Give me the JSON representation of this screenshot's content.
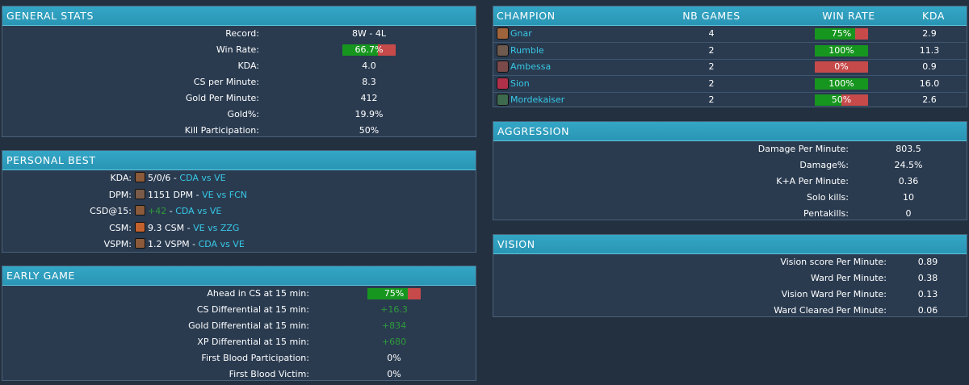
{
  "general_stats": {
    "title": "GENERAL STATS",
    "rows": [
      {
        "label": "Record:",
        "value": "8W - 4L"
      },
      {
        "label": "Win Rate:",
        "value": "66.7%",
        "bar": 0.667
      },
      {
        "label": "KDA:",
        "value": "4.0"
      },
      {
        "label": "CS per Minute:",
        "value": "8.3"
      },
      {
        "label": "Gold Per Minute:",
        "value": "412"
      },
      {
        "label": "Gold%:",
        "value": "19.9%"
      },
      {
        "label": "Kill Participation:",
        "value": "50%"
      }
    ]
  },
  "personal_best": {
    "title": "PERSONAL BEST",
    "rows": [
      {
        "label": "KDA:",
        "stat": "5/0/6",
        "sep": " - ",
        "match": "CDA vs VE",
        "icon": "gnar-icon",
        "icon_color": "#8a5a3a"
      },
      {
        "label": "DPM:",
        "stat": "1151 DPM",
        "sep": " - ",
        "match": "VE vs FCN",
        "icon": "gnar-icon",
        "icon_color": "#7a5b4a"
      },
      {
        "label": "CSD@15:",
        "stat": "+42",
        "sep": " - ",
        "match": "CDA vs VE",
        "icon": "gnar-icon",
        "icon_color": "#8a5a3a",
        "stat_green": true
      },
      {
        "label": "CSM:",
        "stat": "9.3 CSM",
        "sep": " - ",
        "match": "VE vs ZZG",
        "icon": "rumble-icon",
        "icon_color": "#c4622e"
      },
      {
        "label": "VSPM:",
        "stat": "1.2 VSPM",
        "sep": " - ",
        "match": "CDA vs VE",
        "icon": "gnar-icon",
        "icon_color": "#8a5a3a"
      }
    ]
  },
  "early_game": {
    "title": "EARLY GAME",
    "rows": [
      {
        "label": "Ahead in CS at 15 min:",
        "value": "75%",
        "bar": 0.75
      },
      {
        "label": "CS Differential at 15 min:",
        "value": "+16.3",
        "green": true
      },
      {
        "label": "Gold Differential at 15 min:",
        "value": "+834",
        "green": true
      },
      {
        "label": "XP Differential at 15 min:",
        "value": "+680",
        "green": true
      },
      {
        "label": "First Blood Participation:",
        "value": "0%"
      },
      {
        "label": "First Blood Victim:",
        "value": "0%"
      }
    ]
  },
  "champions": {
    "headers": [
      "CHAMPION",
      "NB GAMES",
      "WIN RATE",
      "KDA"
    ],
    "rows": [
      {
        "name": "Gnar",
        "games": "4",
        "win_rate": "75%",
        "win_fraction": 0.75,
        "kda": "2.9",
        "icon": "gnar-icon",
        "icon_color": "#a0643c"
      },
      {
        "name": "Rumble",
        "games": "2",
        "win_rate": "100%",
        "win_fraction": 1.0,
        "kda": "11.3",
        "icon": "rumble-icon",
        "icon_color": "#6e5a4e"
      },
      {
        "name": "Ambessa",
        "games": "2",
        "win_rate": "0%",
        "win_fraction": 0.0,
        "kda": "0.9",
        "icon": "ambessa-icon",
        "icon_color": "#7a4a4a"
      },
      {
        "name": "Sion",
        "games": "2",
        "win_rate": "100%",
        "win_fraction": 1.0,
        "kda": "16.0",
        "icon": "sion-icon",
        "icon_color": "#b0304a"
      },
      {
        "name": "Mordekaiser",
        "games": "2",
        "win_rate": "50%",
        "win_fraction": 0.5,
        "kda": "2.6",
        "icon": "mordekaiser-icon",
        "icon_color": "#3e6a4e"
      }
    ]
  },
  "aggression": {
    "title": "AGGRESSION",
    "rows": [
      {
        "label": "Damage Per Minute:",
        "value": "803.5"
      },
      {
        "label": "Damage%:",
        "value": "24.5%"
      },
      {
        "label": "K+A Per Minute:",
        "value": "0.36"
      },
      {
        "label": "Solo kills:",
        "value": "10"
      },
      {
        "label": "Pentakills:",
        "value": "0"
      }
    ]
  },
  "vision": {
    "title": "VISION",
    "rows": [
      {
        "label": "Vision score Per Minute:",
        "value": "0.89"
      },
      {
        "label": "Ward Per Minute:",
        "value": "0.38"
      },
      {
        "label": "Vision Ward Per Minute:",
        "value": "0.13"
      },
      {
        "label": "Ward Cleared Per Minute:",
        "value": "0.06"
      }
    ]
  },
  "colors": {
    "header": "#2a95b4",
    "panel": "#2a3b50",
    "background": "#22303f",
    "link": "#37c9e6",
    "win": "#17961f",
    "loss": "#c64a4a",
    "positive": "#2e9a3a"
  }
}
